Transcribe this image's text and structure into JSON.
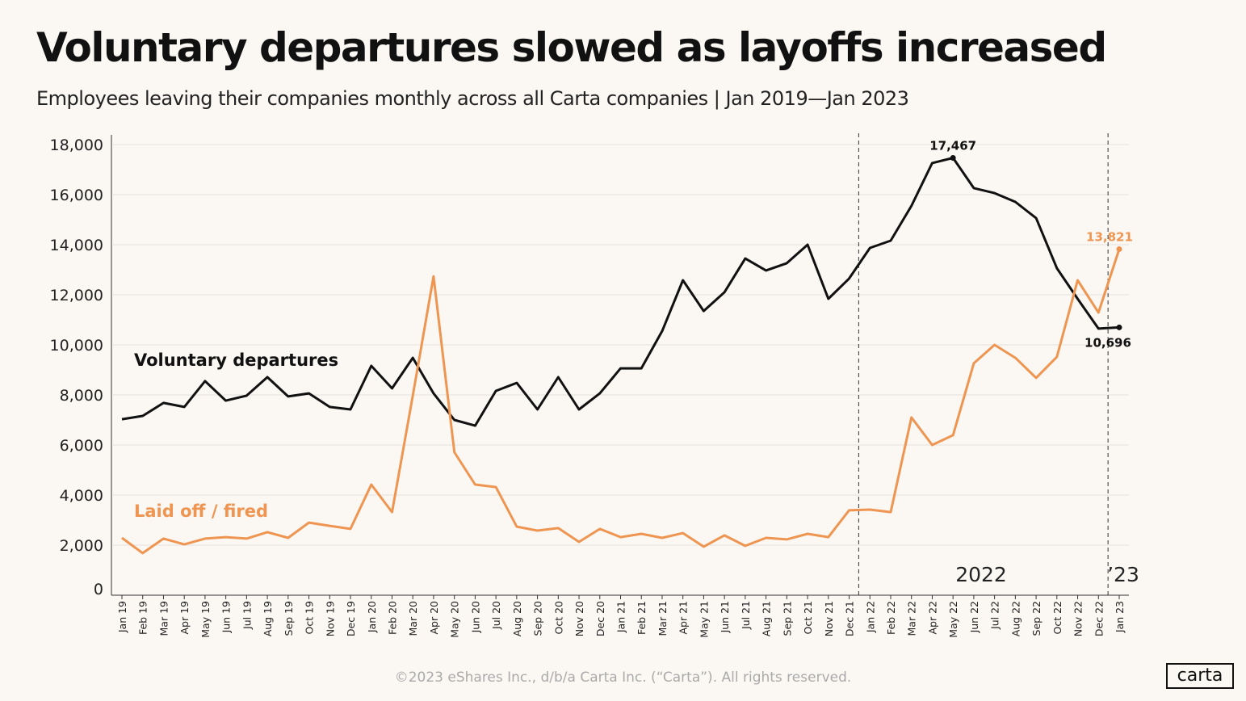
{
  "title": "Voluntary departures slowed as layoffs increased",
  "subtitle": "Employees leaving their companies monthly across all Carta companies  |  Jan 2019—Jan 2023",
  "footer": "©2023 eShares Inc., d/b/a Carta Inc. (“Carta”). All rights reserved.",
  "logo": "carta",
  "chart_data": {
    "type": "line",
    "title": "Voluntary departures slowed as layoffs increased",
    "ylim": [
      0,
      18000
    ],
    "yticks": [
      0,
      2000,
      4000,
      6000,
      8000,
      10000,
      12000,
      14000,
      16000,
      18000
    ],
    "ytick_labels": [
      "0",
      "2,000",
      "4,000",
      "6,000",
      "8,000",
      "10,000",
      "12,000",
      "14,000",
      "16,000",
      "18,000"
    ],
    "grid": true,
    "categories": [
      "Jan 19",
      "Feb 19",
      "Mar 19",
      "Apr 19",
      "May 19",
      "Jun 19",
      "Jul 19",
      "Aug 19",
      "Sep 19",
      "Oct 19",
      "Nov 19",
      "Dec 19",
      "Jan 20",
      "Feb 20",
      "Mar 20",
      "Apr 20",
      "May 20",
      "Jun 20",
      "Jul 20",
      "Aug 20",
      "Sep 20",
      "Oct 20",
      "Nov 20",
      "Dec 20",
      "Jan 21",
      "Feb 21",
      "Mar 21",
      "Apr 21",
      "May 21",
      "Jun 21",
      "Jul 21",
      "Aug 21",
      "Sep 21",
      "Oct 21",
      "Nov 21",
      "Dec 21",
      "Jan 22",
      "Feb 22",
      "Mar 22",
      "Apr 22",
      "May 22",
      "Jun 22",
      "Jul 22",
      "Aug 22",
      "Sep 22",
      "Oct 22",
      "Nov 22",
      "Dec 22",
      "Jan 23"
    ],
    "series": [
      {
        "name": "Voluntary departures",
        "color": "#111111",
        "values": [
          7030,
          7160,
          7680,
          7520,
          8550,
          7770,
          7970,
          8710,
          7940,
          8060,
          7520,
          7420,
          9160,
          8260,
          9480,
          8060,
          7000,
          6770,
          8160,
          8480,
          7420,
          8710,
          7420,
          8060,
          9060,
          9060,
          10550,
          12580,
          11350,
          12100,
          13450,
          12970,
          13260,
          14000,
          11840,
          12650,
          13870,
          14160,
          15550,
          17260,
          17467,
          16260,
          16060,
          15710,
          15060,
          13060,
          11840,
          10650,
          10696
        ]
      },
      {
        "name": "Laid off / fired",
        "color": "#ef9552",
        "values": [
          2290,
          1680,
          2260,
          2030,
          2260,
          2320,
          2260,
          2520,
          2290,
          2900,
          2770,
          2650,
          4420,
          3320,
          7970,
          12740,
          5710,
          4420,
          4320,
          2740,
          2580,
          2680,
          2130,
          2650,
          2320,
          2450,
          2290,
          2480,
          1940,
          2390,
          1970,
          2290,
          2230,
          2450,
          2320,
          3390,
          3420,
          3320,
          7100,
          6000,
          6390,
          9260,
          10000,
          9480,
          8680,
          9520,
          12580,
          11290,
          13821
        ]
      }
    ],
    "annotations": [
      {
        "text": "17,467",
        "category": "May 22",
        "series": "Voluntary departures"
      },
      {
        "text": "10,696",
        "category": "Jan 23",
        "series": "Voluntary departures"
      },
      {
        "text": "13,821",
        "category": "Jan 23",
        "series": "Laid off / fired"
      }
    ],
    "period_labels": [
      {
        "text": "2022",
        "start": "Jan 22"
      },
      {
        "text": "’23",
        "start": "Jan 23"
      }
    ]
  }
}
